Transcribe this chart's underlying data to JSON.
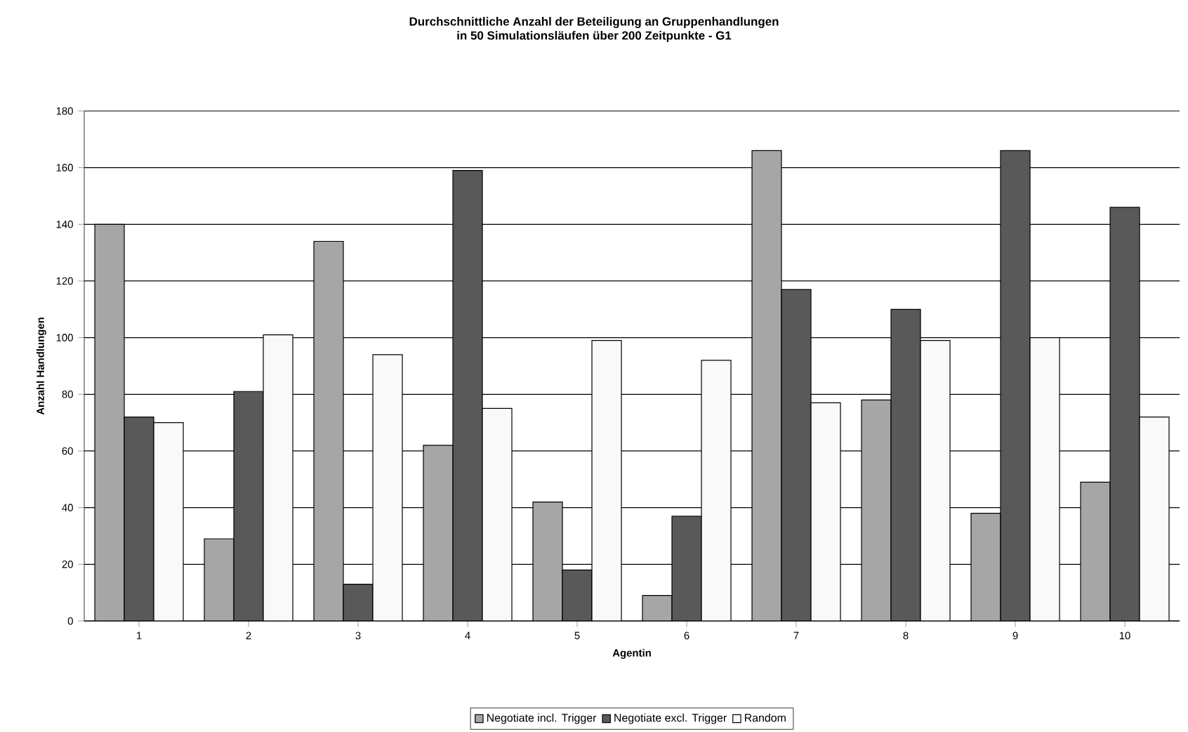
{
  "chart_data": {
    "type": "bar",
    "title": "Durchschnittliche Anzahl der Beteiligung an Gruppenhandlungen",
    "subtitle": "in 50 Simulationsläufen über 200 Zeitpunkte - G1",
    "xlabel": "Agentin",
    "ylabel": "Anzahl Handlungen",
    "categories": [
      "1",
      "2",
      "3",
      "4",
      "5",
      "6",
      "7",
      "8",
      "9",
      "10"
    ],
    "series": [
      {
        "name": "Negotiate incl. Trigger",
        "color": "#a6a6a6",
        "values": [
          140,
          29,
          134,
          62,
          42,
          9,
          166,
          78,
          38,
          49
        ]
      },
      {
        "name": "Negotiate excl. Trigger",
        "color": "#595959",
        "values": [
          72,
          81,
          13,
          159,
          18,
          37,
          117,
          110,
          166,
          146
        ]
      },
      {
        "name": "Random",
        "color": "#f9f9f9",
        "values": [
          70,
          101,
          94,
          75,
          99,
          92,
          77,
          99,
          100,
          72
        ]
      }
    ],
    "ylim": [
      0,
      180
    ],
    "yticks": [
      0,
      20,
      40,
      60,
      80,
      100,
      120,
      140,
      160,
      180
    ],
    "grid": "y",
    "legend": "bottom"
  }
}
